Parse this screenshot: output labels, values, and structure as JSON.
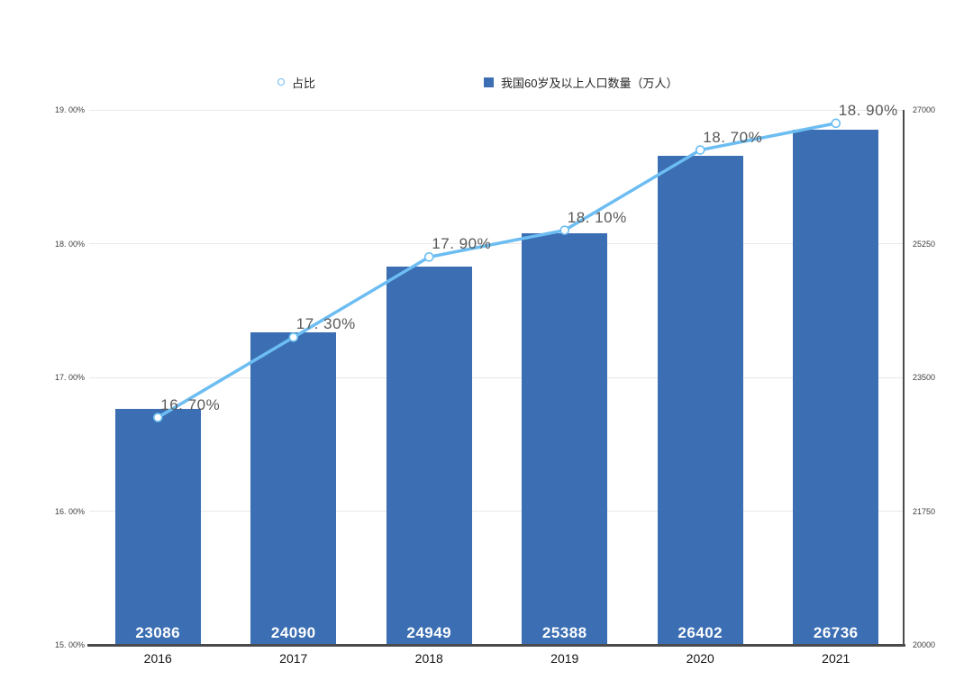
{
  "legend": {
    "items": [
      {
        "label": "占比",
        "marker": "circle-outline",
        "color": "#6CBDF2"
      },
      {
        "label": "我国60岁及以上人口数量（万人）",
        "marker": "square",
        "color": "#3B6EB2"
      }
    ]
  },
  "chart_data": {
    "type": "bar",
    "subtype": "bar-line-combo",
    "title": "",
    "categories": [
      "2016",
      "2017",
      "2018",
      "2019",
      "2020",
      "2021"
    ],
    "series": [
      {
        "name": "我国60岁及以上人口数量（万人）",
        "type": "bar",
        "axis": "right",
        "values": [
          23086,
          24090,
          24949,
          25388,
          26402,
          26736
        ],
        "data_labels": [
          "23086",
          "24090",
          "24949",
          "25388",
          "26402",
          "26736"
        ],
        "color": "#3B6EB2",
        "label_color": "#ffffff"
      },
      {
        "name": "占比",
        "type": "line",
        "axis": "left",
        "values": [
          16.7,
          17.3,
          17.9,
          18.1,
          18.7,
          18.9
        ],
        "data_labels": [
          "16. 70%",
          "17. 30%",
          "17. 90%",
          "18. 10%",
          "18. 70%",
          "18. 90%"
        ],
        "color": "#6CBDF2",
        "marker": "white-circle-blue-outline"
      }
    ],
    "left_axis": {
      "min": 15,
      "max": 19,
      "ticks": [
        {
          "value": 15,
          "label": "15. 00%"
        },
        {
          "value": 16,
          "label": "16. 00%"
        },
        {
          "value": 17,
          "label": "17. 00%"
        },
        {
          "value": 18,
          "label": "18. 00%"
        },
        {
          "value": 19,
          "label": "19. 00%"
        }
      ]
    },
    "right_axis": {
      "min": 20000,
      "max": 27000,
      "ticks": [
        {
          "value": 20000,
          "label": "20000"
        },
        {
          "value": 21750,
          "label": "21750"
        },
        {
          "value": 23500,
          "label": "23500"
        },
        {
          "value": 25250,
          "label": "25250"
        },
        {
          "value": 27000,
          "label": "27000"
        }
      ]
    },
    "x_axis": {
      "labels": [
        "2016",
        "2017",
        "2018",
        "2019",
        "2020",
        "2021"
      ]
    },
    "grid": "horizontal",
    "legend_position": "top",
    "colors": {
      "grid": "#E9E9E9",
      "axis": "#4a4a4a",
      "line_data_label": "#595959",
      "tick_label": "#404040",
      "x_label": "#141414"
    }
  }
}
